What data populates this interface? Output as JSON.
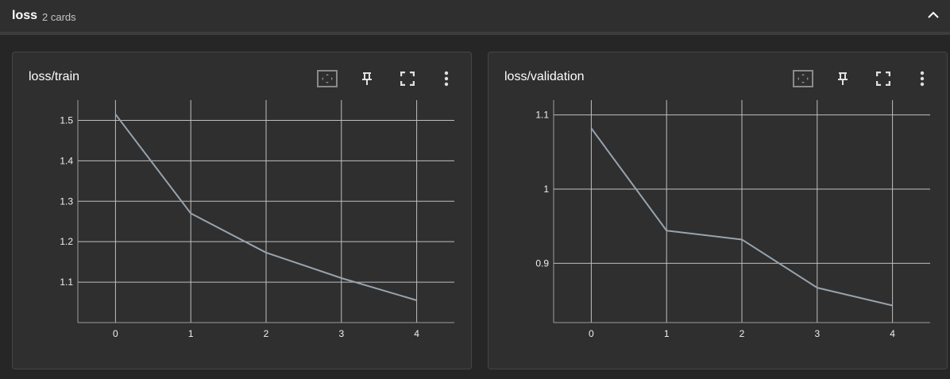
{
  "group": {
    "title": "loss",
    "count": "2 cards"
  },
  "colors": {
    "line": "#98a3ad",
    "grid": "#bfbfbf",
    "axis": "#9e9e9e"
  },
  "cards": [
    {
      "title": "loss/train",
      "toolbar": [
        "fit-domain-icon",
        "pin-icon",
        "fullscreen-icon",
        "more-vert-icon"
      ]
    },
    {
      "title": "loss/validation",
      "toolbar": [
        "fit-domain-icon",
        "pin-icon",
        "fullscreen-icon",
        "more-vert-icon"
      ]
    }
  ],
  "chart_data": [
    {
      "type": "line",
      "title": "loss/train",
      "x": [
        0,
        1,
        2,
        3,
        4
      ],
      "series": [
        {
          "values": [
            1.515,
            1.27,
            1.173,
            1.11,
            1.055
          ]
        }
      ],
      "xlim": [
        -0.5,
        4.5
      ],
      "ylim": [
        1.0,
        1.55
      ],
      "xticks": [
        "0",
        "1",
        "2",
        "3",
        "4"
      ],
      "yticks": [
        "1.1",
        "1.2",
        "1.3",
        "1.4",
        "1.5"
      ],
      "grid": true
    },
    {
      "type": "line",
      "title": "loss/validation",
      "x": [
        0,
        1,
        2,
        3,
        4
      ],
      "series": [
        {
          "values": [
            1.082,
            0.944,
            0.932,
            0.867,
            0.843
          ]
        }
      ],
      "xlim": [
        -0.5,
        4.5
      ],
      "ylim": [
        0.82,
        1.12
      ],
      "xticks": [
        "0",
        "1",
        "2",
        "3",
        "4"
      ],
      "yticks": [
        "0.9",
        "1",
        "1.1"
      ],
      "grid": true
    }
  ]
}
